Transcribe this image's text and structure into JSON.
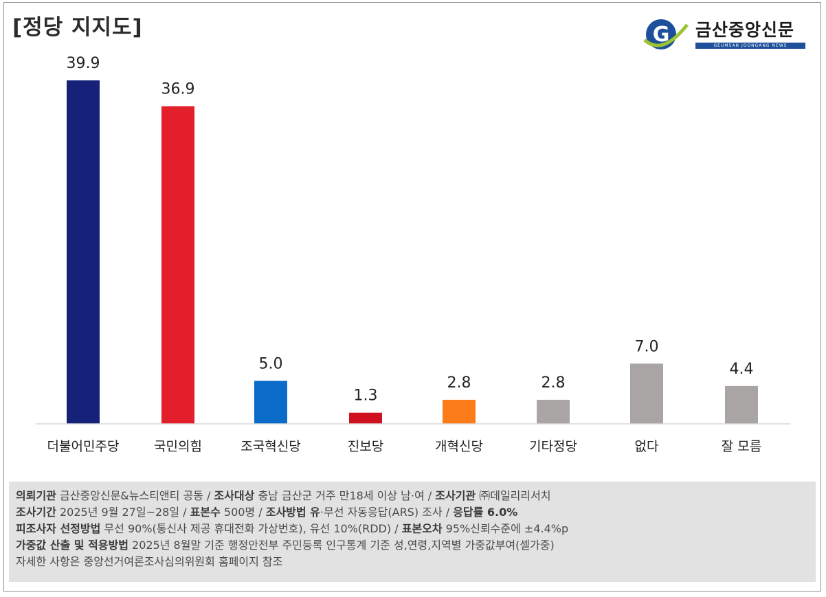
{
  "header": {
    "title": "[정당 지지도]"
  },
  "brand": {
    "name": "금산중앙신문",
    "subtitle": "GEUMSAN JOONGANG NEWS",
    "logo_letter": "G"
  },
  "colors": {
    "blue": "#16217a",
    "red": "#e21f2b",
    "teal_blue": "#0a6cc8",
    "crimson": "#cf1120",
    "orange": "#fd7c1a",
    "gray": "#a9a5a5",
    "navy_brand": "#1d4f9a"
  },
  "chart_data": {
    "type": "bar",
    "title": "[정당 지지도]",
    "categories": [
      "더불어민주당",
      "국민의힘",
      "조국혁신당",
      "진보당",
      "개혁신당",
      "기타정당",
      "없다",
      "잘 모름"
    ],
    "values": [
      39.9,
      36.9,
      5.0,
      1.3,
      2.8,
      2.8,
      7.0,
      4.4
    ],
    "value_labels": [
      "39.9",
      "36.9",
      "5.0",
      "1.3",
      "2.8",
      "2.8",
      "7.0",
      "4.4"
    ],
    "bar_colors": [
      "#16217a",
      "#e21f2b",
      "#0a6cc8",
      "#cf1120",
      "#fd7c1a",
      "#a9a5a5",
      "#a9a5a5",
      "#a9a5a5"
    ],
    "xlabel": "",
    "ylabel": "",
    "ylim": [
      0,
      40
    ],
    "grid": false
  },
  "notes": {
    "line1": [
      {
        "label": "의뢰기관",
        "text": " 금산중앙신문&뉴스티앤티 공동 / "
      },
      {
        "label": "조사대상",
        "text": " 충남 금산군 거주 만18세 이상 남·여 /  "
      },
      {
        "label": "조사기관",
        "text": " ㈜데일리리서치"
      }
    ],
    "line2": [
      {
        "label": "조사기간",
        "text": " 2025년 9월 27일~28일 / "
      },
      {
        "label": "표본수",
        "text": " 500명 / "
      },
      {
        "label": "조사방법 유",
        "text": "·무선 자동응답(ARS) 조사 / "
      },
      {
        "label": "응답률 6.0%",
        "text": ""
      }
    ],
    "line3": [
      {
        "label": "피조사자 선정방법",
        "text": " 무선 90%(통신사 제공 휴대전화 가상번호), 유선 10%(RDD) / "
      },
      {
        "label": "표본오차",
        "text": " 95%신뢰수준에 ±4.4%p"
      }
    ],
    "line4": [
      {
        "label": "가중값 산출 및 적용방법",
        "text": " 2025년 8월말 기준 행정안전부 주민등록 인구통계 기준 성,연령,지역별 가중값부여(셀가중)"
      }
    ],
    "line5": [
      {
        "label": "",
        "text": "자세한 사항은 중앙선거여론조사심의위원회 홈페이지 참조"
      }
    ]
  }
}
